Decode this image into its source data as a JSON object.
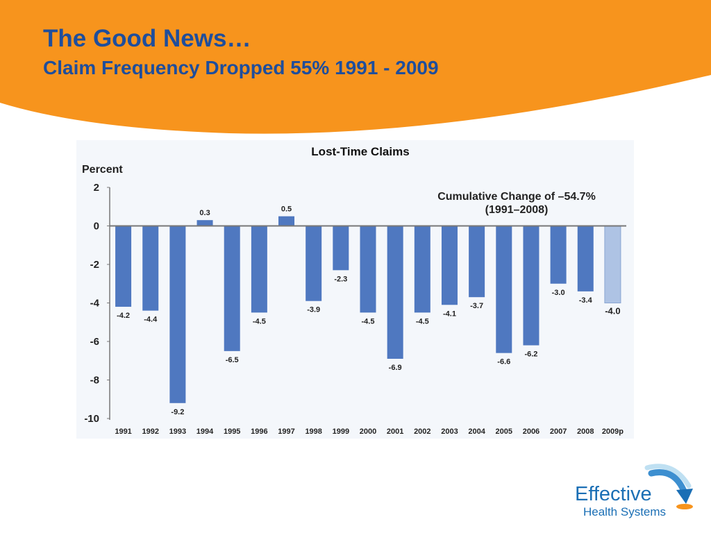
{
  "slide": {
    "title": "The Good News…",
    "subtitle": "Claim Frequency Dropped 55% 1991 - 2009"
  },
  "logo": {
    "name": "Effective",
    "tagline": "Health Systems"
  },
  "colors": {
    "banner": "#f7941d",
    "title": "#1f4e9c",
    "bar": "#4f78c0",
    "bar_projected": "#aec3e4",
    "axis": "#777777"
  },
  "chart_data": {
    "type": "bar",
    "title": "Lost-Time Claims",
    "ylabel": "Percent",
    "xlabel": "",
    "ylim": [
      -10,
      2
    ],
    "yticks": [
      2,
      0,
      -2,
      -4,
      -6,
      -8,
      -10
    ],
    "categories": [
      "1991",
      "1992",
      "1993",
      "1994",
      "1995",
      "1996",
      "1997",
      "1998",
      "1999",
      "2000",
      "2001",
      "2002",
      "2003",
      "2004",
      "2005",
      "2006",
      "2007",
      "2008",
      "2009p"
    ],
    "values": [
      -4.2,
      -4.4,
      -9.2,
      0.3,
      -6.5,
      -4.5,
      0.5,
      -3.9,
      -2.3,
      -4.5,
      -6.9,
      -4.5,
      -4.1,
      -3.7,
      -6.6,
      -6.2,
      -3.0,
      -3.4,
      -4.0
    ],
    "projected": [
      "2009p"
    ],
    "annotation": {
      "line1": "Cumulative Change of –54.7%",
      "line2": "(1991–2008)"
    }
  }
}
